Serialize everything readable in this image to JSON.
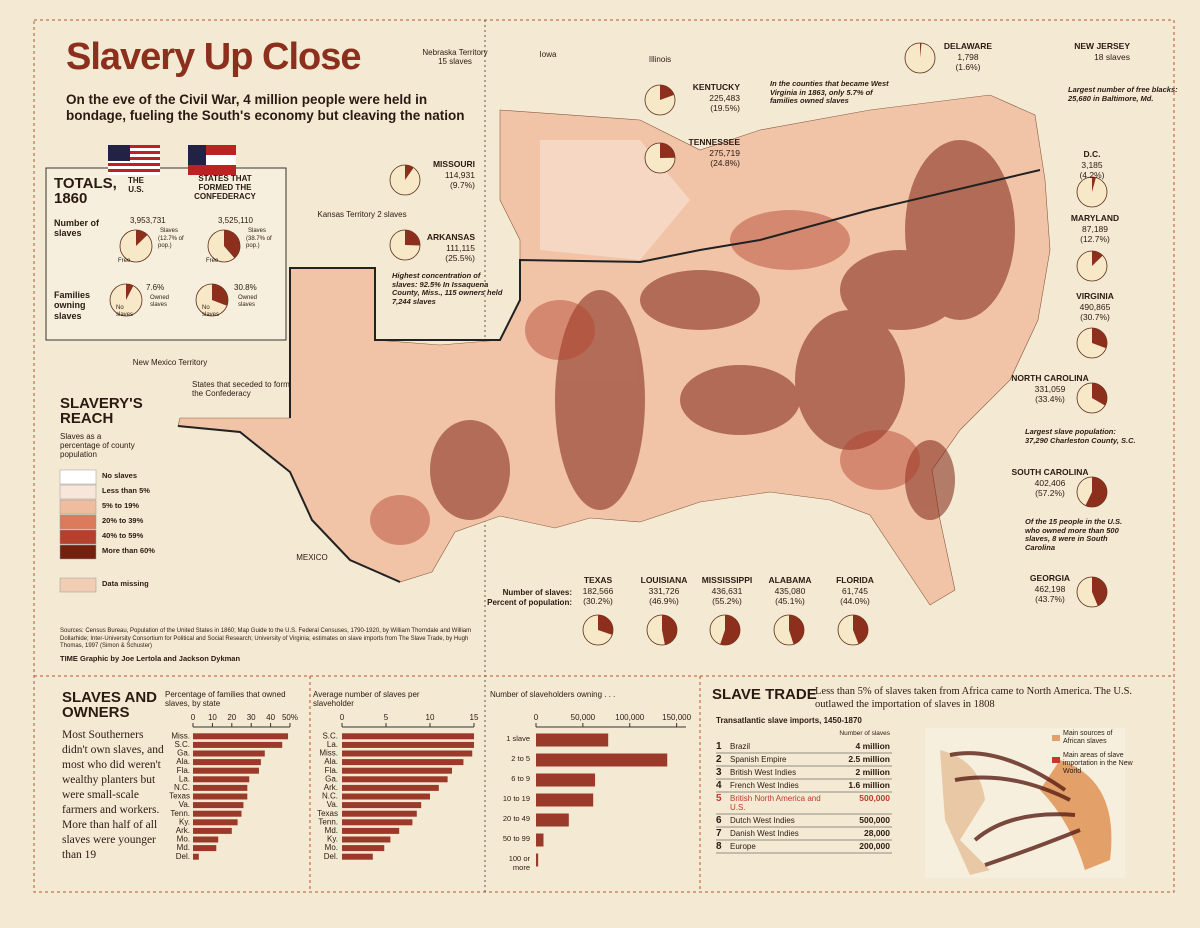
{
  "header": {
    "title": "Slavery Up Close",
    "subtitle": "On the eve of the Civil War, 4 million people were held in bondage, fueling the South's economy but cleaving the nation"
  },
  "totals": {
    "heading": "TOTALS, 1860",
    "col_us": "THE U.S.",
    "col_conf": "STATES THAT FORMED THE CONFEDERACY",
    "row_slaves": "Number of slaves",
    "row_families": "Families owning slaves",
    "us_slaves": "3,953,731",
    "conf_slaves": "3,525,110",
    "slaves_word": "Slaves",
    "free_word": "Free",
    "free_word2": "Free",
    "slaves_word2": "Slaves",
    "owned_word": "Owned slaves",
    "owned_word2": "Owned slaves",
    "no_word": "No slaves",
    "no_word2": "No slaves",
    "us_pct": {
      "value": 12.7,
      "label": "(12.7% of pop.)"
    },
    "conf_pct": {
      "value": 38.7,
      "label": "(38.7% of pop.)"
    },
    "us_fam": {
      "value": 7.6,
      "label": "7.6%"
    },
    "conf_fam": {
      "value": 30.8,
      "label": "30.8%"
    }
  },
  "map": {
    "labels": [
      "Nebraska Territory 15 slaves",
      "Iowa",
      "Illinois",
      "Kansas Territory 2 slaves",
      "New Mexico Territory",
      "MEXICO",
      "States that seceded to form the Confederacy"
    ],
    "annotations": [
      "In the counties that became West Virginia in 1863, only 5.7% of families owned slaves",
      "Largest number of free blacks: 25,680 in Baltimore, Md.",
      "Highest concentration of slaves: 92.5% In Issaquena County, Miss., 115 owners held 7,244 slaves",
      "Largest slave population: 37,290 Charleston County, S.C.",
      "Of the 15 people in the U.S. who owned more than 500 slaves, 8 were in South Carolina"
    ]
  },
  "states": [
    {
      "name": "MISSOURI",
      "slaves": "114,931",
      "pct": {
        "value": 9.7,
        "label": "(9.7%)"
      }
    },
    {
      "name": "ARKANSAS",
      "slaves": "111,115",
      "pct": {
        "value": 25.5,
        "label": "(25.5%)"
      }
    },
    {
      "name": "KENTUCKY",
      "slaves": "225,483",
      "pct": {
        "value": 19.5,
        "label": "(19.5%)"
      }
    },
    {
      "name": "TENNESSEE",
      "slaves": "275,719",
      "pct": {
        "value": 24.8,
        "label": "(24.8%)"
      }
    },
    {
      "name": "DELAWARE",
      "slaves": "1,798",
      "pct": {
        "value": 1.6,
        "label": "(1.6%)"
      }
    },
    {
      "name": "NEW JERSEY",
      "slaves": "18 slaves"
    },
    {
      "name": "D.C.",
      "slaves": "3,185",
      "pct": {
        "value": 4.2,
        "label": "(4.2%)"
      }
    },
    {
      "name": "MARYLAND",
      "slaves": "87,189",
      "pct": {
        "value": 12.7,
        "label": "(12.7%)"
      }
    },
    {
      "name": "VIRGINIA",
      "slaves": "490,865",
      "pct": {
        "value": 30.7,
        "label": "(30.7%)"
      }
    },
    {
      "name": "NORTH CAROLINA",
      "slaves": "331,059",
      "pct": {
        "value": 33.4,
        "label": "(33.4%)"
      }
    },
    {
      "name": "SOUTH CAROLINA",
      "slaves": "402,406",
      "pct": {
        "value": 57.2,
        "label": "(57.2%)"
      }
    },
    {
      "name": "GEORGIA",
      "slaves": "462,198",
      "pct": {
        "value": 43.7,
        "label": "(43.7%)"
      }
    },
    {
      "name": "TEXAS",
      "slaves": "182,566",
      "pct": {
        "value": 30.2,
        "label": "(30.2%)"
      }
    },
    {
      "name": "LOUISIANA",
      "slaves": "331,726",
      "pct": {
        "value": 46.9,
        "label": "(46.9%)"
      }
    },
    {
      "name": "MISSISSIPPI",
      "slaves": "436,631",
      "pct": {
        "value": 55.2,
        "label": "(55.2%)"
      }
    },
    {
      "name": "ALABAMA",
      "slaves": "435,080",
      "pct": {
        "value": 45.1,
        "label": "(45.1%)"
      }
    },
    {
      "name": "FLORIDA",
      "slaves": "61,745",
      "pct": {
        "value": 44.0,
        "label": "(44.0%)"
      }
    }
  ],
  "row_labels": [
    "Number of slaves:",
    "Percent of population:"
  ],
  "legend": {
    "title": "SLAVERY'S REACH",
    "subtitle": "Slaves as a percentage of county population",
    "items": [
      {
        "label": "No slaves",
        "color": "#ffffff"
      },
      {
        "label": "Less than 5%",
        "color": "#f8e6da"
      },
      {
        "label": "5% to 19%",
        "color": "#f0bca0"
      },
      {
        "label": "20% to 39%",
        "color": "#db7b5c"
      },
      {
        "label": "40% to 59%",
        "color": "#b4402d"
      },
      {
        "label": "More than 60%",
        "color": "#74200f"
      },
      {
        "label": "Data missing",
        "color": "#f1cdb4"
      }
    ]
  },
  "sources": "Sources: Census Bureau, Population of the United States in 1860; Map Guide to the U.S. Federal Censuses, 1790-1920, by William Thorndale and William Dollarhide; Inter-University Consortium for Political and Social Research; University of Virginia; estimates on slave imports from The Slave Trade, by Hugh Thomas, 1997 (Simon & Schuster)",
  "credit": "TIME Graphic by Joe Lertola and Jackson Dykman",
  "owners": {
    "title": "SLAVES AND OWNERS",
    "text": "Most Southerners didn't own slaves, and most who did weren't wealthy planters but were small-scale farmers and workers. More than half of all slaves were younger than 19"
  },
  "chart_data": [
    {
      "type": "barh",
      "title": "Percentage of families that owned slaves, by state",
      "color": "#9b3a2a",
      "categories": [
        "Miss.",
        "S.C.",
        "Ga.",
        "Ala.",
        "Fla.",
        "La.",
        "N.C.",
        "Texas",
        "Va.",
        "Tenn.",
        "Ky.",
        "Ark.",
        "Mo.",
        "Md.",
        "Del."
      ],
      "values": [
        49,
        46,
        37,
        35,
        34,
        29,
        28,
        28,
        26,
        25,
        23,
        20,
        13,
        12,
        3
      ],
      "xlim": [
        0,
        50
      ],
      "xticks": [
        0,
        10,
        20,
        30,
        40,
        {
          "value": 50,
          "label": "50%"
        }
      ]
    },
    {
      "type": "barh",
      "title": "Average number of slaves per slaveholder",
      "color": "#9b3a2a",
      "categories": [
        "S.C.",
        "La.",
        "Miss.",
        "Ala.",
        "Fla.",
        "Ga.",
        "Ark.",
        "N.C.",
        "Va.",
        "Texas",
        "Tenn.",
        "Md.",
        "Ky.",
        "Mo.",
        "Del."
      ],
      "values": [
        15,
        15,
        14.8,
        13.8,
        12.5,
        12,
        11,
        10,
        9,
        8.5,
        8,
        6.5,
        5.5,
        4.8,
        3.5
      ],
      "xlim": [
        0,
        15
      ],
      "xticks": [
        0,
        5,
        10,
        15
      ]
    },
    {
      "type": "barh",
      "title": "Number of slaveholders owning . . .",
      "color": "#9b3a2a",
      "categories": [
        "1 slave",
        "2 to 5",
        "6 to 9",
        "10 to 19",
        "20 to 49",
        "50 to 99",
        "100 or more"
      ],
      "values": [
        77000,
        140000,
        63000,
        61000,
        35000,
        8000,
        2300
      ],
      "xlim": [
        0,
        160000
      ],
      "xticks": [
        0,
        {
          "value": 50000,
          "label": "50,000"
        },
        {
          "value": 100000,
          "label": "100,000"
        },
        {
          "value": 150000,
          "label": "150,000"
        }
      ]
    }
  ],
  "trade": {
    "title": "SLAVE TRADE",
    "text": "Less than 5% of slaves taken from Africa came to North America. The U.S. outlawed the importation of slaves in 1808",
    "subtitle": "Transatlantic slave imports, 1450-1870",
    "col_header": "Number of slaves",
    "rows": [
      {
        "rank": "1",
        "name": "Brazil",
        "amount": "4 million"
      },
      {
        "rank": "2",
        "name": "Spanish Empire",
        "amount": "2.5 million"
      },
      {
        "rank": "3",
        "name": "British West Indies",
        "amount": "2 million"
      },
      {
        "rank": "4",
        "name": "French West Indies",
        "amount": "1.6 million"
      },
      {
        "rank": "5",
        "name": "British North America and U.S.",
        "amount": "500,000",
        "color": "#c0392b"
      },
      {
        "rank": "6",
        "name": "Dutch West Indies",
        "amount": "500,000"
      },
      {
        "rank": "7",
        "name": "Danish West Indies",
        "amount": "28,000"
      },
      {
        "rank": "8",
        "name": "Europe",
        "amount": "200,000"
      }
    ],
    "legend": [
      "Main sources of African slaves",
      "Main areas of slave importation in the New World"
    ]
  }
}
